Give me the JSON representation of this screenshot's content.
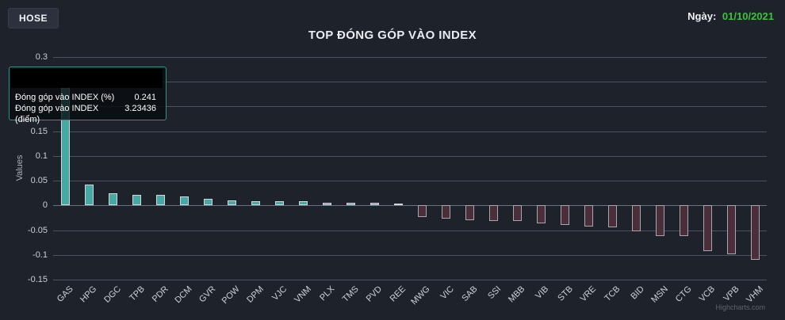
{
  "header": {
    "exchange_button": "HOSE",
    "date_label": "Ngày:",
    "date_value": "01/10/2021"
  },
  "chart_data": {
    "type": "bar",
    "title": "TOP ĐÓNG GÓP VÀO INDEX",
    "ylabel": "Values",
    "ylim": [
      -0.15,
      0.3
    ],
    "tick_interval": 0.05,
    "grid": true,
    "legend": "none",
    "categories": [
      "GAS",
      "HPG",
      "DGC",
      "TPB",
      "PDR",
      "DCM",
      "GVR",
      "POW",
      "DPM",
      "VJC",
      "VNM",
      "PLX",
      "TMS",
      "PVD",
      "REE",
      "MWG",
      "VIC",
      "SAB",
      "SSI",
      "MBB",
      "VIB",
      "STB",
      "VRE",
      "TCB",
      "BID",
      "MSN",
      "CTG",
      "VCB",
      "VPB",
      "VHM"
    ],
    "series": [
      {
        "name": "Đóng góp vào INDEX (%)",
        "values": [
          0.241,
          0.042,
          0.025,
          0.022,
          0.021,
          0.018,
          0.014,
          0.01,
          0.009,
          0.008,
          0.008,
          0.006,
          0.006,
          0.006,
          0.003,
          -0.024,
          -0.027,
          -0.03,
          -0.031,
          -0.032,
          -0.036,
          -0.039,
          -0.043,
          -0.045,
          -0.053,
          -0.062,
          -0.062,
          -0.093,
          -0.098,
          -0.11
        ]
      }
    ],
    "colors": {
      "positive_bar": "#46a9a3",
      "negative_bar": "#4a2e39",
      "background": "#1e222b",
      "gridline": "#4b5160"
    }
  },
  "tooltip": {
    "rows": [
      {
        "label": "Đóng góp vào INDEX (%)",
        "value": "0.241"
      },
      {
        "label": "Đóng góp vào INDEX (điểm)",
        "value": "3.23436"
      }
    ]
  },
  "credits": "Highcharts.com"
}
